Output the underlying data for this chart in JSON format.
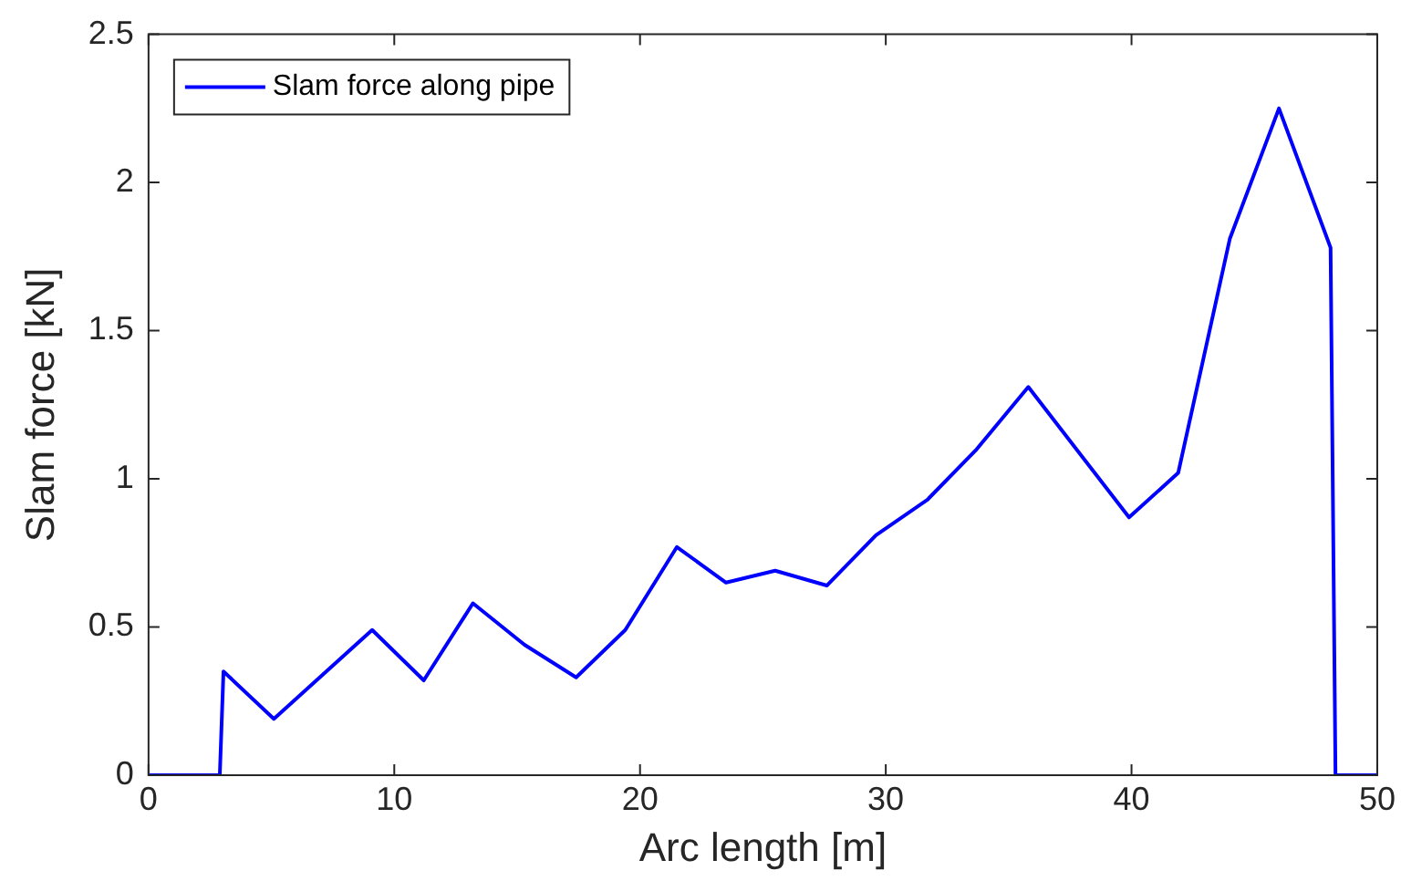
{
  "chart_data": {
    "type": "line",
    "xlabel": "Arc length [m]",
    "ylabel": "Slam force [kN]",
    "x": [
      0,
      2.9,
      3.05,
      5.1,
      7.1,
      9.1,
      11.2,
      13.2,
      15.3,
      17.4,
      19.4,
      21.5,
      23.5,
      25.5,
      27.6,
      29.6,
      31.7,
      33.7,
      35.8,
      39.9,
      41.9,
      44.0,
      46.0,
      48.1,
      48.3,
      50
    ],
    "series": [
      {
        "name": "Slam force along pipe",
        "color": "#0000ff",
        "values": [
          0,
          0,
          0.35,
          0.19,
          0.34,
          0.49,
          0.32,
          0.58,
          0.44,
          0.33,
          0.49,
          0.77,
          0.65,
          0.69,
          0.64,
          0.81,
          0.93,
          1.1,
          1.31,
          0.87,
          1.02,
          1.81,
          2.25,
          1.78,
          0,
          0
        ]
      }
    ],
    "xlim": [
      0,
      50
    ],
    "xticks": [
      0,
      10,
      20,
      30,
      40,
      50
    ],
    "ylim": [
      0,
      2.5
    ],
    "yticks": [
      0,
      0.5,
      1,
      1.5,
      2,
      2.5
    ],
    "grid": false,
    "legend": "top left",
    "marker": "none",
    "line_style": "solid"
  }
}
